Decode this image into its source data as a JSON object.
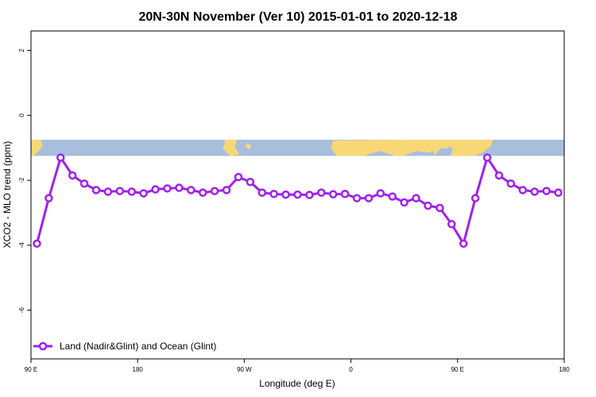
{
  "chart_data": {
    "type": "line",
    "title": "20N-30N November (Ver 10)   2015-01-01 to 2020-12-18",
    "xlabel": "Longitude (deg E)",
    "ylabel": "XCO2 - MLO trend (ppm)",
    "xlim": [
      90,
      540
    ],
    "ylim": [
      -7.5,
      2.6
    ],
    "x_ticks": [
      {
        "value": 90,
        "label": "90 E"
      },
      {
        "value": 180,
        "label": "180"
      },
      {
        "value": 270,
        "label": "90 W"
      },
      {
        "value": 360,
        "label": "0"
      },
      {
        "value": 450,
        "label": "90 E"
      },
      {
        "value": 540,
        "label": "180"
      }
    ],
    "y_ticks": [
      {
        "value": 2,
        "label": "2"
      },
      {
        "value": 0,
        "label": "0"
      },
      {
        "value": -2,
        "label": "-2"
      },
      {
        "value": -4,
        "label": "-4"
      },
      {
        "value": -6,
        "label": "-6"
      }
    ],
    "map_band": {
      "y_top": -0.75,
      "y_bottom": -1.25,
      "ocean_color": "#a7bedd",
      "land_color": "#f8d876"
    },
    "series": [
      {
        "name": "Land (Nadir&Glint) and Ocean (Glint)",
        "color": "#a020f0",
        "x": [
          95,
          105,
          115,
          125,
          135,
          145,
          155,
          165,
          175,
          185,
          195,
          205,
          215,
          225,
          235,
          245,
          255,
          265,
          275,
          285,
          295,
          305,
          315,
          325,
          335,
          345,
          355,
          365,
          375,
          385,
          395,
          405,
          415,
          425,
          435,
          445,
          455,
          465,
          475,
          485,
          495,
          505,
          515,
          525,
          535
        ],
        "y": [
          -3.95,
          -2.55,
          -1.3,
          -1.85,
          -2.1,
          -2.3,
          -2.35,
          -2.33,
          -2.35,
          -2.4,
          -2.28,
          -2.25,
          -2.23,
          -2.3,
          -2.38,
          -2.33,
          -2.3,
          -1.9,
          -2.05,
          -2.38,
          -2.42,
          -2.44,
          -2.44,
          -2.45,
          -2.38,
          -2.43,
          -2.42,
          -2.55,
          -2.55,
          -2.4,
          -2.5,
          -2.68,
          -2.55,
          -2.78,
          -2.85,
          -3.35,
          -3.95,
          -2.55,
          -1.3,
          -1.85,
          -2.1,
          -2.3,
          -2.35,
          -2.33,
          -2.38
        ]
      }
    ],
    "legend": {
      "position": "bottom-left"
    }
  }
}
